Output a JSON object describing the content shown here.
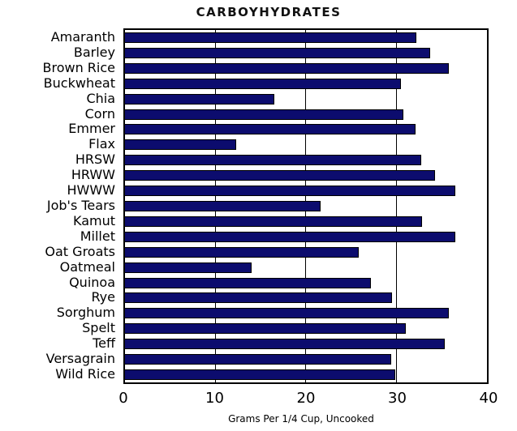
{
  "chart_data": {
    "type": "bar",
    "orientation": "horizontal",
    "title": "CARBOYHYDRATES",
    "xlabel": "Grams Per 1/4 Cup, Uncooked",
    "categories": [
      "Amaranth",
      "Barley",
      "Brown Rice",
      "Buckwheat",
      "Chia",
      "Corn",
      "Emmer",
      "Flax",
      "HRSW",
      "HRWW",
      "HWWW",
      "Job's Tears",
      "Kamut",
      "Millet",
      "Oat Groats",
      "Oatmeal",
      "Quinoa",
      "Rye",
      "Sorghum",
      "Spelt",
      "Teff",
      "Versagrain",
      "Wild Rice"
    ],
    "values": [
      32.2,
      33.7,
      35.8,
      30.5,
      16.5,
      30.8,
      32.1,
      12.3,
      32.7,
      34.3,
      36.5,
      21.6,
      32.8,
      36.5,
      25.8,
      14.0,
      27.2,
      29.5,
      35.8,
      31.0,
      35.3,
      29.4,
      29.9
    ],
    "xlim": [
      0,
      40
    ],
    "xticks": [
      0,
      10,
      20,
      30,
      40
    ],
    "gridlines": [
      10,
      20,
      30
    ],
    "grid": "vertical-only",
    "legend": "none",
    "bar_color": "#0c0c6e",
    "bar_border_color": "#000000",
    "background_color": "#ffffff",
    "text_color": "#000000"
  }
}
